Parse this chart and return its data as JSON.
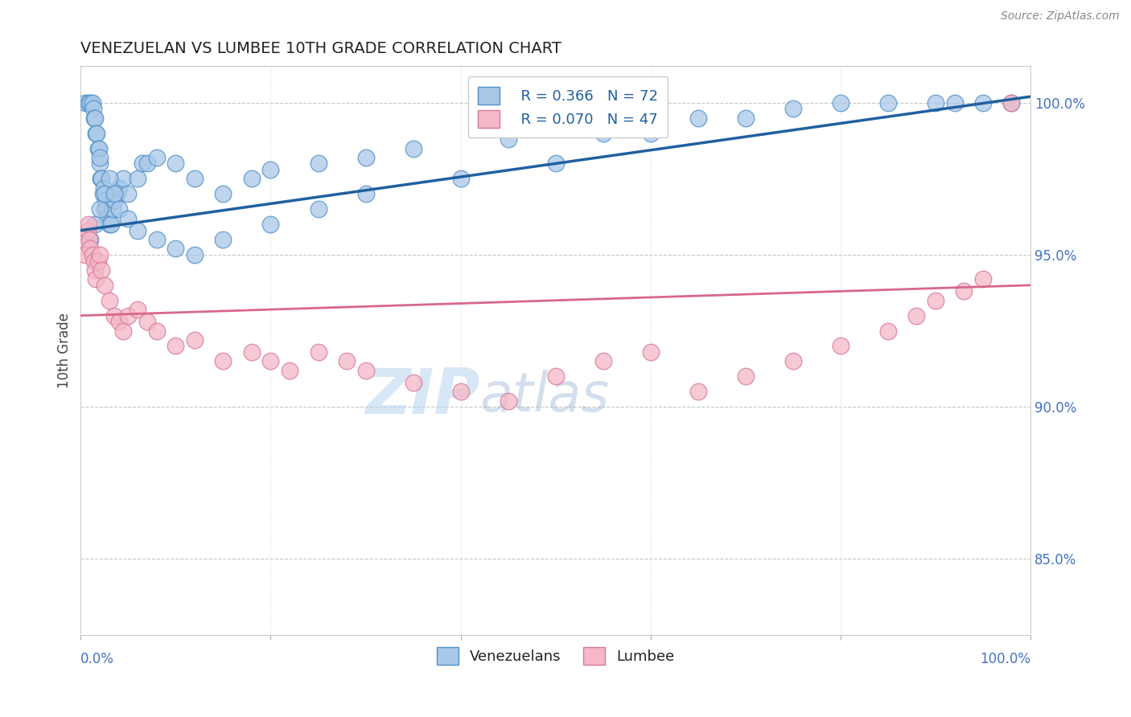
{
  "title": "VENEZUELAN VS LUMBEE 10TH GRADE CORRELATION CHART",
  "source": "Source: ZipAtlas.com",
  "ylabel": "10th Grade",
  "legend_blue_r": "R = 0.366",
  "legend_blue_n": "N = 72",
  "legend_pink_r": "R = 0.070",
  "legend_pink_n": "N = 47",
  "legend_blue_label": "Venezuelans",
  "legend_pink_label": "Lumbee",
  "blue_fill": "#a8c8e8",
  "blue_edge": "#5090c8",
  "pink_fill": "#f4b8c8",
  "pink_edge": "#d87898",
  "blue_line": "#2060a0",
  "pink_line": "#d86888",
  "ylim_low": 82.5,
  "ylim_high": 101.2,
  "xlim_low": 0,
  "xlim_high": 100,
  "yticks": [
    85.0,
    90.0,
    95.0,
    100.0
  ],
  "blue_trend_x0": 0,
  "blue_trend_y0": 95.8,
  "blue_trend_x1": 100,
  "blue_trend_y1": 100.2,
  "pink_trend_x0": 0,
  "pink_trend_y0": 93.0,
  "pink_trend_x1": 100,
  "pink_trend_y1": 94.0,
  "ven_x": [
    0.5,
    0.8,
    1.0,
    1.2,
    1.3,
    1.4,
    1.5,
    1.6,
    1.7,
    1.8,
    1.9,
    2.0,
    2.0,
    2.1,
    2.2,
    2.3,
    2.4,
    2.5,
    2.6,
    2.7,
    2.8,
    3.0,
    3.2,
    3.4,
    3.5,
    3.8,
    4.0,
    4.5,
    5.0,
    6.0,
    6.5,
    7.0,
    8.0,
    10.0,
    12.0,
    15.0,
    18.0,
    20.0,
    25.0,
    30.0,
    35.0,
    45.0,
    55.0,
    60.0,
    65.0,
    70.0,
    75.0,
    80.0,
    85.0,
    90.0,
    92.0,
    95.0,
    98.0,
    1.0,
    1.5,
    2.0,
    2.5,
    3.0,
    3.5,
    4.0,
    5.0,
    6.0,
    8.0,
    10.0,
    12.0,
    15.0,
    20.0,
    25.0,
    30.0,
    40.0,
    50.0,
    60.0
  ],
  "ven_y": [
    100.0,
    100.0,
    100.0,
    100.0,
    99.8,
    99.5,
    99.5,
    99.0,
    99.0,
    98.5,
    98.5,
    98.0,
    98.2,
    97.5,
    97.5,
    97.0,
    97.2,
    96.5,
    96.8,
    96.5,
    96.2,
    96.0,
    96.0,
    96.5,
    96.8,
    97.0,
    97.2,
    97.5,
    97.0,
    97.5,
    98.0,
    98.0,
    98.2,
    98.0,
    97.5,
    97.0,
    97.5,
    97.8,
    98.0,
    98.2,
    98.5,
    98.8,
    99.0,
    99.2,
    99.5,
    99.5,
    99.8,
    100.0,
    100.0,
    100.0,
    100.0,
    100.0,
    100.0,
    95.5,
    96.0,
    96.5,
    97.0,
    97.5,
    97.0,
    96.5,
    96.2,
    95.8,
    95.5,
    95.2,
    95.0,
    95.5,
    96.0,
    96.5,
    97.0,
    97.5,
    98.0,
    99.0
  ],
  "lum_x": [
    0.3,
    0.5,
    0.7,
    0.8,
    0.9,
    1.0,
    1.2,
    1.4,
    1.5,
    1.6,
    1.8,
    2.0,
    2.2,
    2.5,
    3.0,
    3.5,
    4.0,
    4.5,
    5.0,
    6.0,
    7.0,
    8.0,
    10.0,
    12.0,
    15.0,
    18.0,
    20.0,
    22.0,
    25.0,
    28.0,
    30.0,
    35.0,
    40.0,
    45.0,
    50.0,
    55.0,
    60.0,
    65.0,
    70.0,
    75.0,
    80.0,
    85.0,
    88.0,
    90.0,
    93.0,
    95.0,
    98.0
  ],
  "lum_y": [
    95.5,
    95.0,
    95.8,
    96.0,
    95.5,
    95.2,
    95.0,
    94.8,
    94.5,
    94.2,
    94.8,
    95.0,
    94.5,
    94.0,
    93.5,
    93.0,
    92.8,
    92.5,
    93.0,
    93.2,
    92.8,
    92.5,
    92.0,
    92.2,
    91.5,
    91.8,
    91.5,
    91.2,
    91.8,
    91.5,
    91.2,
    90.8,
    90.5,
    90.2,
    91.0,
    91.5,
    91.8,
    90.5,
    91.0,
    91.5,
    92.0,
    92.5,
    93.0,
    93.5,
    93.8,
    94.2,
    100.0
  ]
}
